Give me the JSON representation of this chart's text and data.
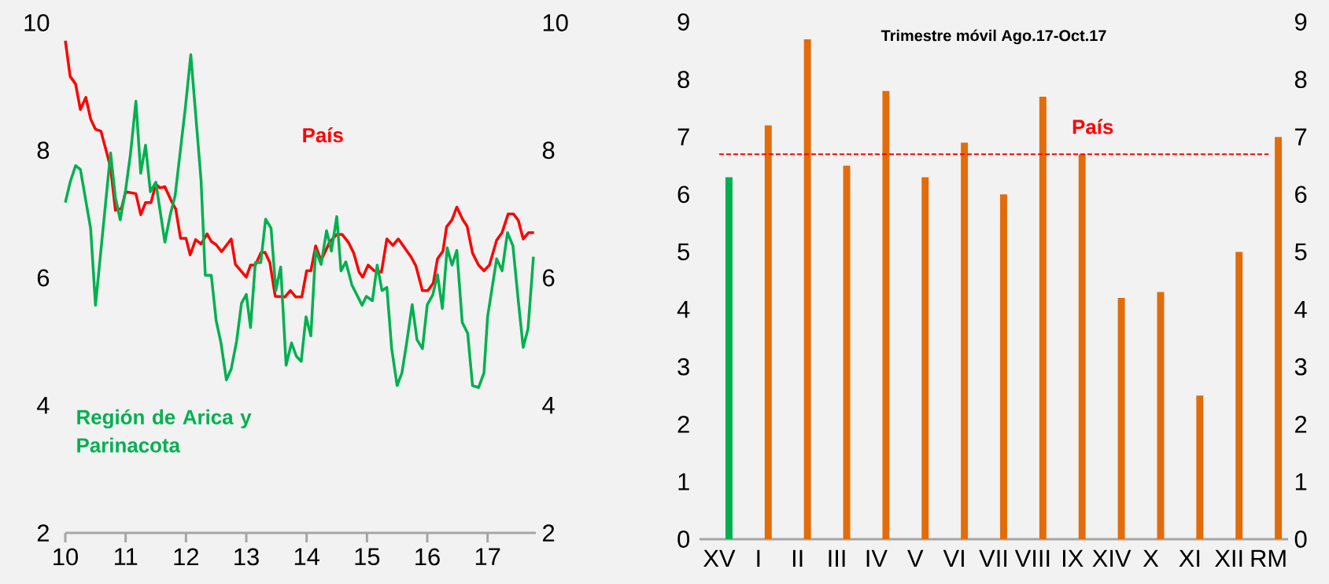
{
  "chart_data": [
    {
      "type": "line",
      "xlim": [
        10,
        17.8
      ],
      "xticks": [
        10,
        11,
        12,
        13,
        14,
        15,
        16,
        17
      ],
      "ylim": [
        2,
        10
      ],
      "yticks": [
        2,
        4,
        6,
        8,
        10
      ],
      "y2lim": [
        2,
        10
      ],
      "y2ticks": [
        2,
        4,
        6,
        8,
        10
      ],
      "series": [
        {
          "name": "País",
          "color": "#ff0000",
          "x": [
            10.0,
            10.08,
            10.17,
            10.25,
            10.34,
            10.42,
            10.5,
            10.59,
            10.67,
            10.75,
            10.83,
            10.93,
            11.0,
            11.17,
            11.25,
            11.33,
            11.42,
            11.5,
            11.57,
            11.65,
            11.76,
            11.83,
            11.91,
            12.0,
            12.07,
            12.16,
            12.25,
            12.35,
            12.42,
            12.5,
            12.59,
            12.75,
            12.82,
            13.0,
            13.07,
            13.15,
            13.24,
            13.31,
            13.39,
            13.48,
            13.64,
            13.73,
            13.82,
            13.92,
            14.0,
            14.07,
            14.15,
            14.24,
            14.38,
            14.5,
            14.59,
            14.69,
            14.78,
            14.87,
            14.93,
            15.02,
            15.12,
            15.24,
            15.33,
            15.43,
            15.52,
            15.73,
            15.81,
            15.92,
            16.01,
            16.1,
            16.17,
            16.26,
            16.32,
            16.41,
            16.49,
            16.59,
            16.66,
            16.75,
            16.85,
            16.94,
            17.03,
            17.15,
            17.24,
            17.34,
            17.43,
            17.51,
            17.59,
            17.68,
            17.77
          ],
          "values": [
            9.72,
            9.16,
            9.04,
            8.64,
            8.83,
            8.49,
            8.33,
            8.3,
            8.02,
            7.73,
            7.06,
            7.09,
            7.35,
            7.32,
            6.99,
            7.18,
            7.18,
            7.47,
            7.41,
            7.43,
            7.2,
            7.08,
            6.62,
            6.62,
            6.36,
            6.6,
            6.53,
            6.69,
            6.57,
            6.52,
            6.41,
            6.61,
            6.21,
            6.01,
            6.2,
            6.2,
            6.39,
            6.4,
            6.24,
            5.71,
            5.7,
            5.8,
            5.7,
            5.7,
            6.11,
            6.11,
            6.5,
            6.27,
            6.56,
            6.68,
            6.68,
            6.56,
            6.39,
            6.09,
            6.01,
            6.2,
            6.11,
            6.09,
            6.61,
            6.51,
            6.61,
            6.33,
            6.19,
            5.8,
            5.8,
            5.92,
            6.3,
            6.42,
            6.8,
            6.91,
            7.11,
            6.91,
            6.81,
            6.39,
            6.2,
            6.11,
            6.2,
            6.59,
            6.71,
            7.0,
            7.0,
            6.9,
            6.61,
            6.71,
            6.71
          ]
        },
        {
          "name": "Región de Arica y Parinacota",
          "color": "#00b050",
          "x": [
            10.0,
            10.08,
            10.17,
            10.25,
            10.42,
            10.5,
            10.75,
            10.83,
            10.91,
            11.0,
            11.08,
            11.17,
            11.25,
            11.33,
            11.41,
            11.5,
            11.65,
            11.74,
            11.82,
            11.99,
            12.08,
            12.25,
            12.32,
            12.42,
            12.5,
            12.58,
            12.67,
            12.75,
            12.84,
            12.92,
            13.0,
            13.07,
            13.15,
            13.24,
            13.32,
            13.41,
            13.49,
            13.57,
            13.66,
            13.75,
            13.83,
            13.91,
            13.99,
            14.07,
            14.15,
            14.24,
            14.33,
            14.41,
            14.5,
            14.57,
            14.65,
            14.75,
            14.92,
            14.99,
            15.09,
            15.17,
            15.25,
            15.33,
            15.41,
            15.5,
            15.58,
            15.66,
            15.75,
            15.83,
            15.92,
            16.0,
            16.09,
            16.17,
            16.25,
            16.33,
            16.41,
            16.49,
            16.58,
            16.67,
            16.75,
            16.85,
            16.94,
            17.0,
            17.15,
            17.24,
            17.33,
            17.42,
            17.51,
            17.59,
            17.67,
            17.76
          ],
          "values": [
            7.18,
            7.5,
            7.76,
            7.7,
            6.77,
            5.57,
            7.96,
            7.26,
            6.91,
            7.38,
            7.94,
            8.77,
            7.64,
            8.08,
            7.35,
            7.5,
            6.56,
            6.99,
            7.29,
            8.67,
            9.5,
            7.53,
            6.04,
            6.04,
            5.33,
            4.98,
            4.4,
            4.57,
            5.01,
            5.6,
            5.74,
            5.22,
            6.24,
            6.24,
            6.92,
            6.78,
            5.8,
            6.17,
            4.63,
            4.98,
            4.77,
            4.69,
            5.39,
            5.09,
            6.43,
            6.21,
            6.74,
            6.42,
            6.96,
            6.11,
            6.25,
            5.89,
            5.57,
            5.71,
            5.64,
            6.2,
            5.8,
            5.85,
            4.89,
            4.31,
            4.51,
            4.99,
            5.58,
            5.03,
            4.89,
            5.58,
            5.73,
            6.05,
            5.52,
            6.47,
            6.2,
            6.43,
            5.3,
            5.13,
            4.31,
            4.28,
            4.51,
            5.39,
            6.3,
            6.11,
            6.71,
            6.5,
            5.63,
            4.91,
            5.2,
            6.33
          ]
        }
      ]
    },
    {
      "type": "bar",
      "title": "Trimestre móvil Ago.17-Oct.17",
      "categories": [
        "XV",
        "I",
        "II",
        "III",
        "IV",
        "V",
        "VI",
        "VII",
        "VIII",
        "IX",
        "XIV",
        "X",
        "XI",
        "XII",
        "RM"
      ],
      "values": [
        6.3,
        7.2,
        8.7,
        6.5,
        7.8,
        6.3,
        6.9,
        6.0,
        7.7,
        6.7,
        4.2,
        4.3,
        2.5,
        5.0,
        7.0
      ],
      "colors": [
        "#00b050",
        "#e36c0a",
        "#e36c0a",
        "#e36c0a",
        "#e36c0a",
        "#e36c0a",
        "#e36c0a",
        "#e36c0a",
        "#e36c0a",
        "#e36c0a",
        "#e36c0a",
        "#e36c0a",
        "#e36c0a",
        "#e36c0a",
        "#e36c0a"
      ],
      "ylim": [
        0,
        9
      ],
      "yticks": [
        0,
        1,
        2,
        3,
        4,
        5,
        6,
        7,
        8,
        9
      ],
      "y2lim": [
        0,
        9
      ],
      "y2ticks": [
        0,
        1,
        2,
        3,
        4,
        5,
        6,
        7,
        8,
        9
      ],
      "ref_lines": [
        {
          "axis": "y",
          "value": 6.7,
          "label": "País",
          "color": "#ff0000",
          "line_style": "dashed"
        }
      ]
    }
  ]
}
